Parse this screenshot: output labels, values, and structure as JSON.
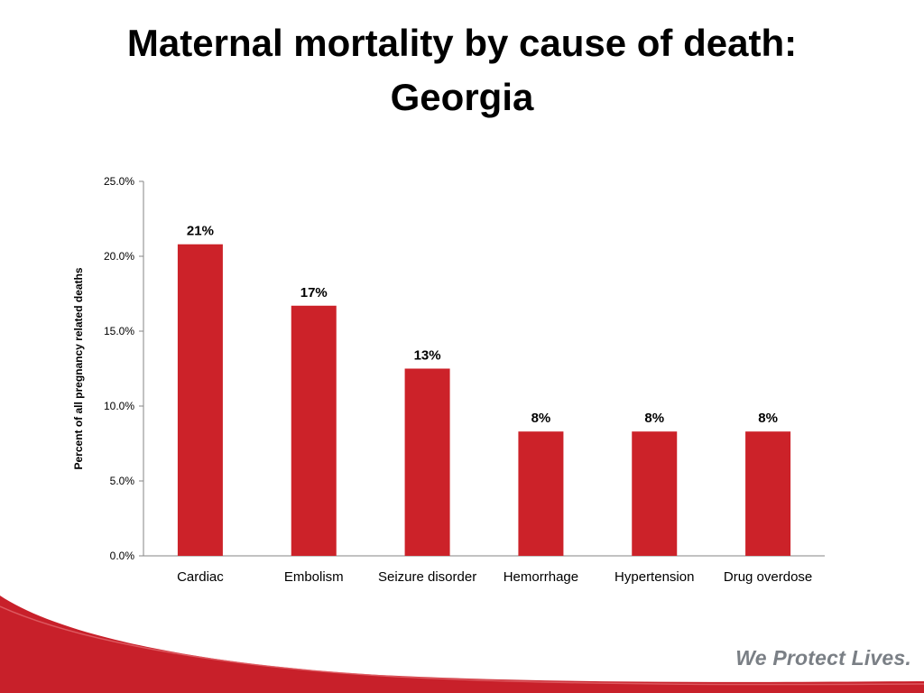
{
  "slide": {
    "title_line1": "Maternal mortality by cause of death:",
    "title_line2": "Georgia",
    "tagline": "We Protect Lives."
  },
  "colors": {
    "bar": "#cc2229",
    "axis": "#868686",
    "swoosh": "#c8202a",
    "tagline": "#7a7f85"
  },
  "chart_data": {
    "type": "bar",
    "title": "",
    "xlabel": "",
    "ylabel": "Percent of all pregnancy related deaths",
    "categories": [
      "Cardiac",
      "Embolism",
      "Seizure disorder",
      "Hemorrhage",
      "Hypertension",
      "Drug overdose"
    ],
    "values": [
      20.8,
      16.7,
      12.5,
      8.3,
      8.3,
      8.3
    ],
    "data_labels": [
      "21%",
      "17%",
      "13%",
      "8%",
      "8%",
      "8%"
    ],
    "ylim": [
      0,
      25
    ],
    "yticks": [
      "0.0%",
      "5.0%",
      "10.0%",
      "15.0%",
      "20.0%",
      "25.0%"
    ],
    "grid": false,
    "legend": "none"
  }
}
